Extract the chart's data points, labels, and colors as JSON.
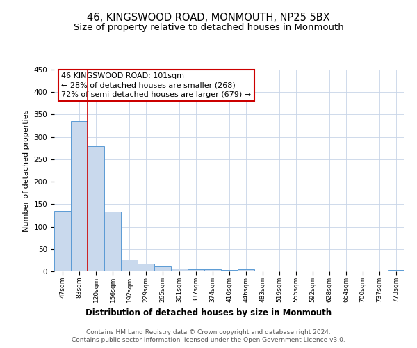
{
  "title": "46, KINGSWOOD ROAD, MONMOUTH, NP25 5BX",
  "subtitle": "Size of property relative to detached houses in Monmouth",
  "xlabel": "Distribution of detached houses by size in Monmouth",
  "ylabel": "Number of detached properties",
  "bar_labels": [
    "47sqm",
    "83sqm",
    "120sqm",
    "156sqm",
    "192sqm",
    "229sqm",
    "265sqm",
    "301sqm",
    "337sqm",
    "374sqm",
    "410sqm",
    "446sqm",
    "483sqm",
    "519sqm",
    "555sqm",
    "592sqm",
    "628sqm",
    "664sqm",
    "700sqm",
    "737sqm",
    "773sqm"
  ],
  "bar_values": [
    135,
    335,
    280,
    133,
    27,
    17,
    13,
    6,
    5,
    5,
    3,
    4,
    0,
    0,
    0,
    0,
    0,
    0,
    0,
    0,
    3
  ],
  "bar_color": "#c9d9ed",
  "bar_edge_color": "#5b9bd5",
  "vline_color": "#cc0000",
  "ylim": [
    0,
    450
  ],
  "yticks": [
    0,
    50,
    100,
    150,
    200,
    250,
    300,
    350,
    400,
    450
  ],
  "annotation_title": "46 KINGSWOOD ROAD: 101sqm",
  "annotation_line1": "← 28% of detached houses are smaller (268)",
  "annotation_line2": "72% of semi-detached houses are larger (679) →",
  "annotation_box_color": "#ffffff",
  "annotation_box_edge": "#cc0000",
  "footer_line1": "Contains HM Land Registry data © Crown copyright and database right 2024.",
  "footer_line2": "Contains public sector information licensed under the Open Government Licence v3.0.",
  "background_color": "#ffffff",
  "grid_color": "#c8d4e8",
  "title_fontsize": 10.5,
  "subtitle_fontsize": 9.5
}
